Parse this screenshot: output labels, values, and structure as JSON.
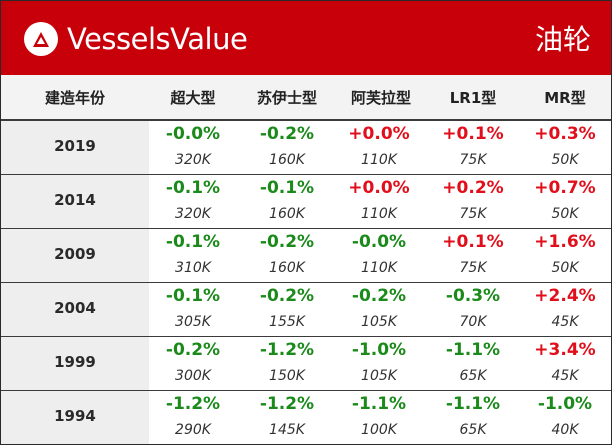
{
  "header": {
    "brand": "VesselsValue",
    "category": "油轮",
    "logo_icon": "vesselsvalue-logo-icon",
    "bg_color": "#c8000a"
  },
  "columns": [
    "建造年份",
    "超大型",
    "苏伊士型",
    "阿芙拉型",
    "LR1型",
    "MR型"
  ],
  "colors": {
    "positive": "#e10f1b",
    "negative": "#1a8a1a"
  },
  "rows": [
    {
      "year": "2019",
      "cells": [
        {
          "change": "-0.0%",
          "value": "320K",
          "dir": "neg"
        },
        {
          "change": "-0.2%",
          "value": "160K",
          "dir": "neg"
        },
        {
          "change": "+0.0%",
          "value": "110K",
          "dir": "pos"
        },
        {
          "change": "+0.1%",
          "value": "75K",
          "dir": "pos"
        },
        {
          "change": "+0.3%",
          "value": "50K",
          "dir": "pos"
        }
      ]
    },
    {
      "year": "2014",
      "cells": [
        {
          "change": "-0.1%",
          "value": "320K",
          "dir": "neg"
        },
        {
          "change": "-0.1%",
          "value": "160K",
          "dir": "neg"
        },
        {
          "change": "+0.0%",
          "value": "110K",
          "dir": "pos"
        },
        {
          "change": "+0.2%",
          "value": "75K",
          "dir": "pos"
        },
        {
          "change": "+0.7%",
          "value": "50K",
          "dir": "pos"
        }
      ]
    },
    {
      "year": "2009",
      "cells": [
        {
          "change": "-0.1%",
          "value": "310K",
          "dir": "neg"
        },
        {
          "change": "-0.2%",
          "value": "160K",
          "dir": "neg"
        },
        {
          "change": "-0.0%",
          "value": "110K",
          "dir": "neg"
        },
        {
          "change": "+0.1%",
          "value": "75K",
          "dir": "pos"
        },
        {
          "change": "+1.6%",
          "value": "50K",
          "dir": "pos"
        }
      ]
    },
    {
      "year": "2004",
      "cells": [
        {
          "change": "-0.1%",
          "value": "305K",
          "dir": "neg"
        },
        {
          "change": "-0.2%",
          "value": "155K",
          "dir": "neg"
        },
        {
          "change": "-0.2%",
          "value": "105K",
          "dir": "neg"
        },
        {
          "change": "-0.3%",
          "value": "70K",
          "dir": "neg"
        },
        {
          "change": "+2.4%",
          "value": "45K",
          "dir": "pos"
        }
      ]
    },
    {
      "year": "1999",
      "cells": [
        {
          "change": "-0.2%",
          "value": "300K",
          "dir": "neg"
        },
        {
          "change": "-1.2%",
          "value": "150K",
          "dir": "neg"
        },
        {
          "change": "-1.0%",
          "value": "105K",
          "dir": "neg"
        },
        {
          "change": "-1.1%",
          "value": "65K",
          "dir": "neg"
        },
        {
          "change": "+3.4%",
          "value": "45K",
          "dir": "pos"
        }
      ]
    },
    {
      "year": "1994",
      "cells": [
        {
          "change": "-1.2%",
          "value": "290K",
          "dir": "neg"
        },
        {
          "change": "-1.2%",
          "value": "145K",
          "dir": "neg"
        },
        {
          "change": "-1.1%",
          "value": "100K",
          "dir": "neg"
        },
        {
          "change": "-1.1%",
          "value": "65K",
          "dir": "neg"
        },
        {
          "change": "-1.0%",
          "value": "40K",
          "dir": "neg"
        }
      ]
    }
  ]
}
